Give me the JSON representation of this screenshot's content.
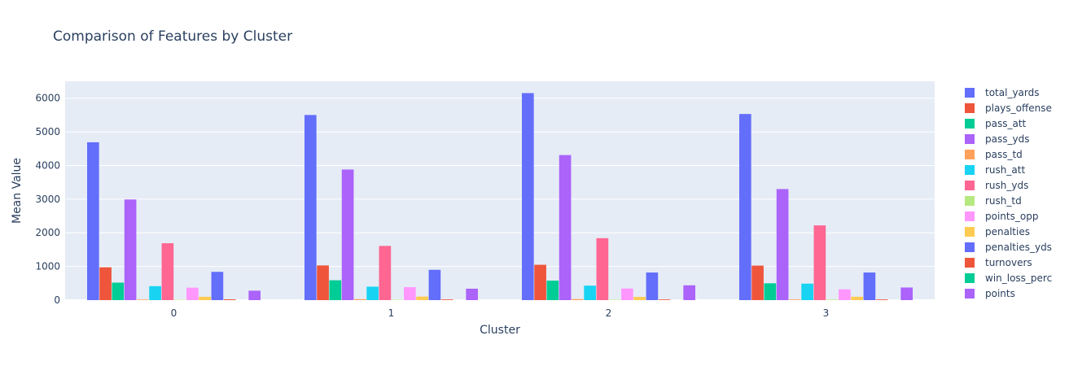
{
  "chart_data": {
    "type": "bar",
    "title": "Comparison of Features by Cluster",
    "xlabel": "Cluster",
    "ylabel": "Mean Value",
    "categories": [
      "0",
      "1",
      "2",
      "3"
    ],
    "ylim": [
      0,
      6500
    ],
    "yticks": [
      0,
      1000,
      2000,
      3000,
      4000,
      5000,
      6000
    ],
    "grid": true,
    "legend_position": "right",
    "series": [
      {
        "name": "total_yards",
        "color": "#636efa",
        "values": [
          4690,
          5500,
          6150,
          5530
        ]
      },
      {
        "name": "plays_offense",
        "color": "#EF553B",
        "values": [
          975,
          1030,
          1050,
          1025
        ]
      },
      {
        "name": "pass_att",
        "color": "#00cc96",
        "values": [
          520,
          590,
          580,
          500
        ]
      },
      {
        "name": "pass_yds",
        "color": "#ab63fa",
        "values": [
          2990,
          3880,
          4310,
          3300
        ]
      },
      {
        "name": "pass_td",
        "color": "#FFA15A",
        "values": [
          18,
          28,
          30,
          20
        ]
      },
      {
        "name": "rush_att",
        "color": "#19d3f3",
        "values": [
          415,
          400,
          430,
          490
        ]
      },
      {
        "name": "rush_yds",
        "color": "#FF6692",
        "values": [
          1690,
          1610,
          1840,
          2220
        ]
      },
      {
        "name": "rush_td",
        "color": "#B6E880",
        "values": [
          11,
          12,
          14,
          17
        ]
      },
      {
        "name": "points_opp",
        "color": "#FF97FF",
        "values": [
          370,
          385,
          345,
          320
        ]
      },
      {
        "name": "penalties",
        "color": "#FECB52",
        "values": [
          100,
          105,
          95,
          100
        ]
      },
      {
        "name": "penalties_yds",
        "color": "#636efa",
        "values": [
          840,
          900,
          820,
          820
        ]
      },
      {
        "name": "turnovers",
        "color": "#EF553B",
        "values": [
          24,
          20,
          19,
          20
        ]
      },
      {
        "name": "win_loss_perc",
        "color": "#00cc96",
        "values": [
          0.3,
          0.6,
          0.7,
          0.6
        ]
      },
      {
        "name": "points",
        "color": "#ab63fa",
        "values": [
          280,
          340,
          440,
          375
        ]
      }
    ],
    "legend_visible_labels": [
      "total_yards",
      "plays_offense",
      "pass_att",
      "pass_yds",
      "pass_td",
      "rush_att",
      "rush_yds",
      "rush_td",
      "points_opp",
      "penalties",
      "penalties_yds",
      "turnovers",
      "win_loss_perc",
      "points"
    ]
  }
}
